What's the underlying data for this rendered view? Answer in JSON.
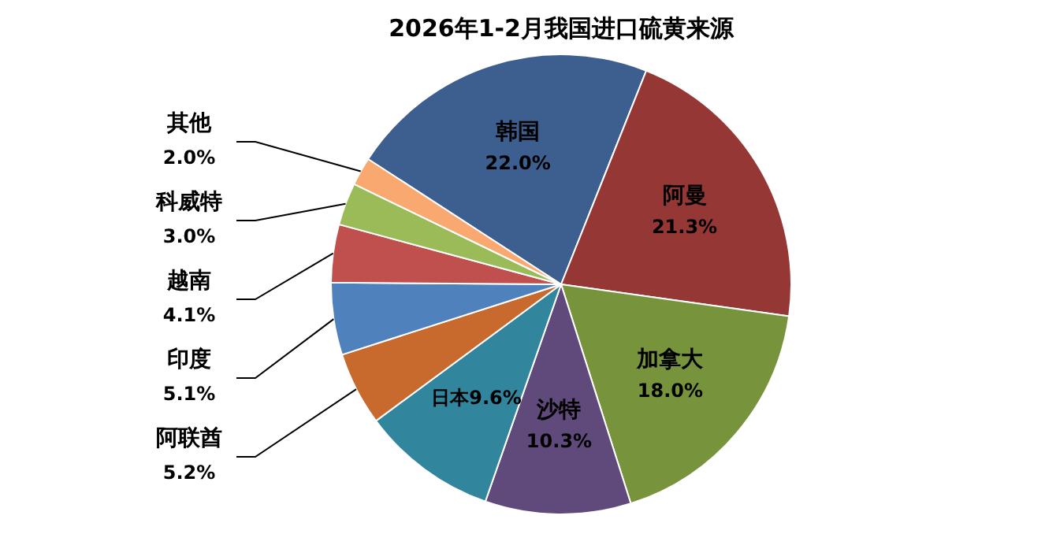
{
  "chart_data": {
    "type": "pie",
    "title": "2026年1-2月我国进口硫黄来源",
    "categories": [
      "韩国",
      "阿曼",
      "加拿大",
      "沙特",
      "日本",
      "阿联酋",
      "印度",
      "越南",
      "科威特",
      "其他"
    ],
    "values": [
      22.0,
      21.3,
      18.0,
      10.3,
      9.6,
      5.2,
      5.1,
      4.1,
      3.0,
      2.0
    ],
    "value_labels": [
      "22.0%",
      "21.3%",
      "18.0%",
      "10.3%",
      "9.6%",
      "5.2%",
      "5.1%",
      "4.1%",
      "3.0%",
      "2.0%"
    ],
    "colors": [
      "#3d5f8f",
      "#953735",
      "#77933c",
      "#604a7b",
      "#31859c",
      "#c8692e",
      "#4f81bd",
      "#c0504d",
      "#9bbb59",
      "#f9a86f"
    ],
    "legend": false
  }
}
